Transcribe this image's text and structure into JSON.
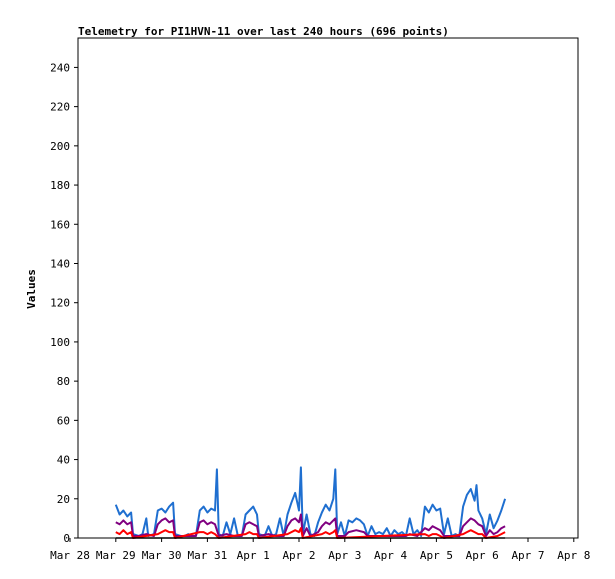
{
  "chart_data": {
    "type": "line",
    "title": "Telemetry for PI1HVN-11 over last 240 hours (696 points)",
    "xlabel": "",
    "ylabel": "Values",
    "ylim": [
      0,
      255
    ],
    "xlim": [
      0,
      240
    ],
    "y_ticks": [
      0,
      20,
      40,
      60,
      80,
      100,
      120,
      140,
      160,
      180,
      200,
      220,
      240
    ],
    "x_ticks": [
      {
        "label": "Mar 28",
        "x": 0
      },
      {
        "label": "Mar 29",
        "x": 24
      },
      {
        "label": "Mar 30",
        "x": 48
      },
      {
        "label": "Mar 31",
        "x": 72
      },
      {
        "label": "Apr 1",
        "x": 96
      },
      {
        "label": "Apr 2",
        "x": 120
      },
      {
        "label": "Apr 3",
        "x": 144
      },
      {
        "label": "Apr 4",
        "x": 168
      },
      {
        "label": "Apr 5",
        "x": 192
      },
      {
        "label": "Apr 6",
        "x": 216
      },
      {
        "label": "Apr 7",
        "x": 240
      },
      {
        "label": "Apr 8",
        "x": 264
      }
    ],
    "x_unit": "hours",
    "grid": false,
    "series": [
      {
        "color": "#1f6fd0",
        "points": [
          [
            24,
            17
          ],
          [
            26,
            12
          ],
          [
            28,
            14
          ],
          [
            30,
            11
          ],
          [
            32,
            13
          ],
          [
            33,
            2
          ],
          [
            36,
            1
          ],
          [
            38,
            2
          ],
          [
            40,
            10
          ],
          [
            41,
            1
          ],
          [
            44,
            2
          ],
          [
            46,
            14
          ],
          [
            48,
            15
          ],
          [
            50,
            13
          ],
          [
            52,
            16
          ],
          [
            54,
            18
          ],
          [
            55,
            2
          ],
          [
            58,
            1
          ],
          [
            60,
            1
          ],
          [
            62,
            2
          ],
          [
            64,
            1
          ],
          [
            66,
            1
          ],
          [
            68,
            14
          ],
          [
            70,
            16
          ],
          [
            72,
            13
          ],
          [
            74,
            15
          ],
          [
            76,
            14
          ],
          [
            77,
            35
          ],
          [
            78,
            2
          ],
          [
            80,
            1
          ],
          [
            82,
            8
          ],
          [
            84,
            2
          ],
          [
            86,
            10
          ],
          [
            88,
            1
          ],
          [
            90,
            1
          ],
          [
            92,
            12
          ],
          [
            94,
            14
          ],
          [
            96,
            16
          ],
          [
            98,
            12
          ],
          [
            99,
            2
          ],
          [
            102,
            1
          ],
          [
            104,
            6
          ],
          [
            106,
            1
          ],
          [
            108,
            2
          ],
          [
            110,
            10
          ],
          [
            112,
            1
          ],
          [
            114,
            12
          ],
          [
            116,
            18
          ],
          [
            118,
            23
          ],
          [
            120,
            14
          ],
          [
            121,
            36
          ],
          [
            122,
            2
          ],
          [
            124,
            12
          ],
          [
            126,
            2
          ],
          [
            128,
            1
          ],
          [
            130,
            8
          ],
          [
            132,
            13
          ],
          [
            134,
            17
          ],
          [
            136,
            14
          ],
          [
            138,
            20
          ],
          [
            139,
            35
          ],
          [
            140,
            2
          ],
          [
            142,
            8
          ],
          [
            144,
            1
          ],
          [
            146,
            9
          ],
          [
            148,
            8
          ],
          [
            150,
            10
          ],
          [
            152,
            9
          ],
          [
            154,
            7
          ],
          [
            156,
            1
          ],
          [
            158,
            6
          ],
          [
            160,
            2
          ],
          [
            162,
            3
          ],
          [
            164,
            2
          ],
          [
            166,
            5
          ],
          [
            168,
            1
          ],
          [
            170,
            4
          ],
          [
            172,
            2
          ],
          [
            174,
            3
          ],
          [
            176,
            1
          ],
          [
            178,
            10
          ],
          [
            180,
            2
          ],
          [
            182,
            4
          ],
          [
            184,
            1
          ],
          [
            186,
            16
          ],
          [
            188,
            13
          ],
          [
            190,
            17
          ],
          [
            192,
            14
          ],
          [
            194,
            15
          ],
          [
            196,
            2
          ],
          [
            198,
            10
          ],
          [
            200,
            1
          ],
          [
            202,
            2
          ],
          [
            204,
            1
          ],
          [
            206,
            16
          ],
          [
            208,
            22
          ],
          [
            210,
            25
          ],
          [
            212,
            19
          ],
          [
            213,
            27
          ],
          [
            214,
            14
          ],
          [
            216,
            10
          ],
          [
            218,
            2
          ],
          [
            220,
            12
          ],
          [
            222,
            5
          ],
          [
            224,
            9
          ],
          [
            226,
            14
          ],
          [
            228,
            20
          ]
        ]
      },
      {
        "color": "#800080",
        "points": [
          [
            24,
            8
          ],
          [
            26,
            7
          ],
          [
            28,
            9
          ],
          [
            30,
            7
          ],
          [
            32,
            8
          ],
          [
            33,
            1
          ],
          [
            36,
            1
          ],
          [
            40,
            2
          ],
          [
            44,
            1
          ],
          [
            46,
            7
          ],
          [
            48,
            9
          ],
          [
            50,
            10
          ],
          [
            52,
            8
          ],
          [
            54,
            9
          ],
          [
            55,
            1
          ],
          [
            58,
            1
          ],
          [
            62,
            1
          ],
          [
            66,
            1
          ],
          [
            68,
            8
          ],
          [
            70,
            9
          ],
          [
            72,
            7
          ],
          [
            74,
            8
          ],
          [
            76,
            7
          ],
          [
            78,
            1
          ],
          [
            82,
            2
          ],
          [
            86,
            1
          ],
          [
            90,
            1
          ],
          [
            92,
            7
          ],
          [
            94,
            8
          ],
          [
            96,
            7
          ],
          [
            98,
            6
          ],
          [
            99,
            1
          ],
          [
            104,
            2
          ],
          [
            108,
            1
          ],
          [
            112,
            1
          ],
          [
            114,
            6
          ],
          [
            116,
            9
          ],
          [
            118,
            10
          ],
          [
            120,
            8
          ],
          [
            121,
            12
          ],
          [
            122,
            1
          ],
          [
            124,
            5
          ],
          [
            126,
            1
          ],
          [
            130,
            3
          ],
          [
            132,
            6
          ],
          [
            134,
            8
          ],
          [
            136,
            7
          ],
          [
            138,
            9
          ],
          [
            139,
            10
          ],
          [
            140,
            1
          ],
          [
            144,
            1
          ],
          [
            146,
            3
          ],
          [
            150,
            4
          ],
          [
            154,
            3
          ],
          [
            156,
            1
          ],
          [
            160,
            1
          ],
          [
            164,
            1
          ],
          [
            168,
            1
          ],
          [
            172,
            1
          ],
          [
            176,
            1
          ],
          [
            178,
            2
          ],
          [
            182,
            1
          ],
          [
            186,
            5
          ],
          [
            188,
            4
          ],
          [
            190,
            6
          ],
          [
            192,
            5
          ],
          [
            194,
            4
          ],
          [
            196,
            1
          ],
          [
            200,
            1
          ],
          [
            204,
            1
          ],
          [
            206,
            6
          ],
          [
            208,
            8
          ],
          [
            210,
            10
          ],
          [
            212,
            9
          ],
          [
            214,
            7
          ],
          [
            216,
            6
          ],
          [
            218,
            1
          ],
          [
            220,
            4
          ],
          [
            222,
            2
          ],
          [
            224,
            3
          ],
          [
            226,
            5
          ],
          [
            228,
            6
          ]
        ]
      },
      {
        "color": "#ff0000",
        "points": [
          [
            24,
            3
          ],
          [
            26,
            2
          ],
          [
            28,
            4
          ],
          [
            30,
            2
          ],
          [
            32,
            3
          ],
          [
            33,
            0
          ],
          [
            46,
            2
          ],
          [
            48,
            3
          ],
          [
            50,
            4
          ],
          [
            52,
            3
          ],
          [
            54,
            3
          ],
          [
            55,
            0
          ],
          [
            68,
            3
          ],
          [
            70,
            3
          ],
          [
            72,
            2
          ],
          [
            74,
            3
          ],
          [
            76,
            2
          ],
          [
            78,
            0
          ],
          [
            92,
            2
          ],
          [
            94,
            3
          ],
          [
            96,
            2
          ],
          [
            98,
            2
          ],
          [
            99,
            0
          ],
          [
            114,
            2
          ],
          [
            116,
            3
          ],
          [
            118,
            4
          ],
          [
            120,
            3
          ],
          [
            121,
            5
          ],
          [
            122,
            0
          ],
          [
            132,
            2
          ],
          [
            134,
            3
          ],
          [
            136,
            2
          ],
          [
            138,
            3
          ],
          [
            139,
            4
          ],
          [
            140,
            0
          ],
          [
            186,
            2
          ],
          [
            188,
            1
          ],
          [
            190,
            2
          ],
          [
            192,
            2
          ],
          [
            194,
            1
          ],
          [
            196,
            0
          ],
          [
            206,
            2
          ],
          [
            208,
            3
          ],
          [
            210,
            4
          ],
          [
            212,
            3
          ],
          [
            214,
            2
          ],
          [
            216,
            2
          ],
          [
            218,
            0
          ],
          [
            224,
            1
          ],
          [
            226,
            2
          ],
          [
            228,
            3
          ]
        ]
      },
      {
        "color": "#000000",
        "points": [
          [
            24,
            0
          ],
          [
            228,
            0
          ]
        ]
      }
    ]
  }
}
